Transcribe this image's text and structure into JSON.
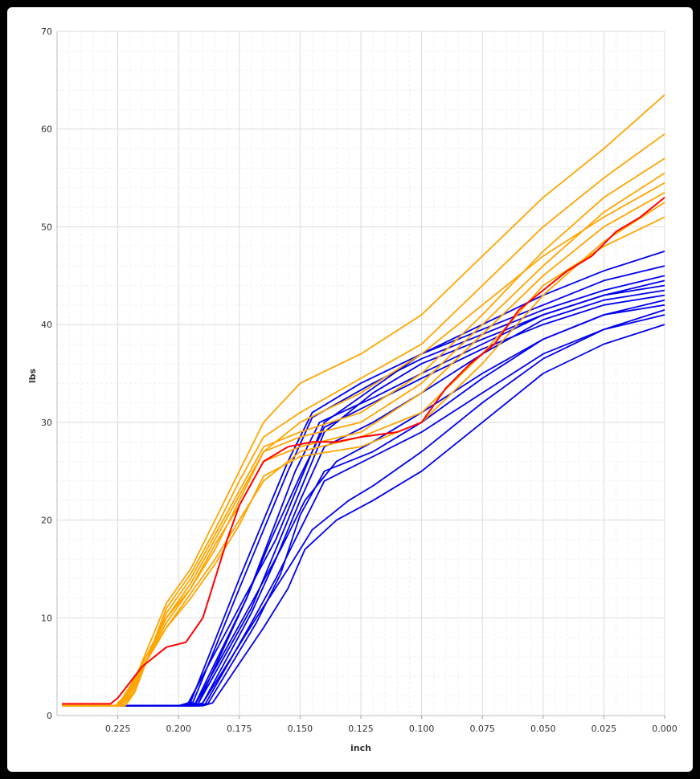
{
  "chart_data": {
    "type": "line",
    "title": "",
    "xlabel": "inch",
    "ylabel": "lbs",
    "xlim": [
      0.25,
      0.0
    ],
    "ylim": [
      0,
      70
    ],
    "x_reversed": true,
    "x_ticks": [
      "0.225",
      "0.200",
      "0.175",
      "0.150",
      "0.125",
      "0.100",
      "0.075",
      "0.050",
      "0.025",
      "0.000"
    ],
    "y_ticks": [
      "0",
      "10",
      "20",
      "30",
      "40",
      "50",
      "60",
      "70"
    ],
    "grid": true,
    "legend": "none",
    "colors": {
      "group_a": "#0000ee",
      "group_b": "#ffa500",
      "highlight": "#ff0000"
    },
    "series": [
      {
        "group": "group_a",
        "x": [
          0.248,
          0.195,
          0.192,
          0.17,
          0.16,
          0.15,
          0.14,
          0.12,
          0.1,
          0.075,
          0.05,
          0.025,
          0.0
        ],
        "y": [
          1.0,
          1.0,
          1.2,
          11.0,
          17.0,
          23.0,
          29.0,
          33.0,
          36.0,
          38.5,
          41.0,
          43.0,
          44.0
        ]
      },
      {
        "group": "group_a",
        "x": [
          0.248,
          0.2,
          0.196,
          0.172,
          0.16,
          0.15,
          0.14,
          0.12,
          0.1,
          0.075,
          0.05,
          0.025,
          0.0
        ],
        "y": [
          1.0,
          1.0,
          1.3,
          12.5,
          18.0,
          24.0,
          30.0,
          33.5,
          37.0,
          40.0,
          43.0,
          45.5,
          47.5
        ]
      },
      {
        "group": "group_a",
        "x": [
          0.248,
          0.192,
          0.189,
          0.17,
          0.16,
          0.15,
          0.14,
          0.12,
          0.1,
          0.075,
          0.05,
          0.025,
          0.0
        ],
        "y": [
          1.0,
          1.0,
          1.2,
          9.5,
          14.0,
          19.0,
          24.0,
          26.5,
          29.0,
          33.0,
          37.0,
          39.5,
          41.0
        ]
      },
      {
        "group": "group_a",
        "x": [
          0.248,
          0.198,
          0.194,
          0.175,
          0.165,
          0.155,
          0.145,
          0.12,
          0.1,
          0.075,
          0.05,
          0.025,
          0.0
        ],
        "y": [
          1.0,
          1.0,
          1.4,
          13.0,
          19.0,
          25.0,
          30.5,
          34.0,
          36.5,
          39.0,
          41.5,
          43.5,
          45.0
        ]
      },
      {
        "group": "group_a",
        "x": [
          0.248,
          0.19,
          0.186,
          0.165,
          0.155,
          0.148,
          0.135,
          0.12,
          0.1,
          0.075,
          0.05,
          0.025,
          0.0
        ],
        "y": [
          1.0,
          1.0,
          1.3,
          9.0,
          13.0,
          17.0,
          20.0,
          22.0,
          25.0,
          30.0,
          35.0,
          38.0,
          40.0
        ]
      },
      {
        "group": "group_a",
        "x": [
          0.248,
          0.196,
          0.193,
          0.17,
          0.158,
          0.148,
          0.135,
          0.12,
          0.1,
          0.075,
          0.05,
          0.025,
          0.0
        ],
        "y": [
          1.0,
          1.0,
          1.2,
          11.5,
          17.0,
          22.0,
          26.0,
          28.0,
          31.0,
          35.0,
          38.5,
          41.0,
          42.5
        ]
      },
      {
        "group": "group_a",
        "x": [
          0.248,
          0.194,
          0.19,
          0.17,
          0.16,
          0.15,
          0.14,
          0.12,
          0.1,
          0.075,
          0.05,
          0.025,
          0.0
        ],
        "y": [
          1.0,
          1.0,
          1.3,
          10.5,
          16.0,
          22.0,
          27.5,
          30.0,
          33.0,
          37.0,
          40.5,
          42.5,
          43.5
        ]
      },
      {
        "group": "group_a",
        "x": [
          0.248,
          0.199,
          0.195,
          0.175,
          0.165,
          0.155,
          0.145,
          0.125,
          0.1,
          0.075,
          0.05,
          0.025,
          0.0
        ],
        "y": [
          1.0,
          1.0,
          1.4,
          14.0,
          20.0,
          26.0,
          31.0,
          34.0,
          37.0,
          39.5,
          42.0,
          44.5,
          46.0
        ]
      },
      {
        "group": "group_a",
        "x": [
          0.248,
          0.191,
          0.188,
          0.168,
          0.158,
          0.15,
          0.14,
          0.12,
          0.1,
          0.075,
          0.05,
          0.025,
          0.0
        ],
        "y": [
          1.0,
          1.0,
          1.2,
          9.5,
          14.5,
          20.5,
          25.0,
          27.0,
          30.0,
          34.5,
          38.5,
          41.0,
          42.0
        ]
      },
      {
        "group": "group_a",
        "x": [
          0.248,
          0.197,
          0.193,
          0.172,
          0.162,
          0.152,
          0.142,
          0.12,
          0.1,
          0.075,
          0.05,
          0.025,
          0.0
        ],
        "y": [
          1.0,
          1.0,
          1.3,
          12.0,
          18.5,
          25.0,
          30.0,
          32.5,
          35.0,
          38.0,
          41.0,
          43.0,
          44.5
        ]
      },
      {
        "group": "group_a",
        "x": [
          0.248,
          0.193,
          0.19,
          0.168,
          0.155,
          0.145,
          0.13,
          0.12,
          0.1,
          0.075,
          0.05,
          0.025,
          0.0
        ],
        "y": [
          1.0,
          1.0,
          1.3,
          10.0,
          15.0,
          19.0,
          22.0,
          23.5,
          27.0,
          32.0,
          36.5,
          39.5,
          41.5
        ]
      },
      {
        "group": "group_a",
        "x": [
          0.248,
          0.195,
          0.192,
          0.172,
          0.162,
          0.15,
          0.14,
          0.12,
          0.1,
          0.075,
          0.05,
          0.025,
          0.0
        ],
        "y": [
          1.0,
          1.0,
          1.2,
          12.0,
          18.0,
          24.5,
          29.5,
          32.0,
          34.5,
          37.5,
          40.0,
          42.0,
          43.0
        ]
      }
    ],
    "series_b": [
      {
        "group": "group_b",
        "x": [
          0.248,
          0.225,
          0.222,
          0.205,
          0.195,
          0.185,
          0.175,
          0.165,
          0.15,
          0.125,
          0.1,
          0.075,
          0.05,
          0.025,
          0.0
        ],
        "y": [
          1.0,
          1.0,
          2.0,
          10.0,
          13.0,
          17.0,
          22.0,
          27.0,
          30.0,
          33.0,
          37.0,
          42.0,
          47.0,
          51.0,
          54.5
        ]
      },
      {
        "group": "group_b",
        "x": [
          0.248,
          0.224,
          0.22,
          0.205,
          0.195,
          0.185,
          0.175,
          0.165,
          0.15,
          0.125,
          0.1,
          0.075,
          0.05,
          0.025,
          0.0
        ],
        "y": [
          1.0,
          1.0,
          2.5,
          11.5,
          15.0,
          20.0,
          25.0,
          30.0,
          34.0,
          37.0,
          41.0,
          47.0,
          53.0,
          58.0,
          63.5
        ]
      },
      {
        "group": "group_b",
        "x": [
          0.248,
          0.226,
          0.223,
          0.205,
          0.195,
          0.185,
          0.175,
          0.165,
          0.15,
          0.125,
          0.1,
          0.075,
          0.05,
          0.025,
          0.0
        ],
        "y": [
          1.0,
          1.0,
          1.8,
          9.0,
          12.5,
          16.0,
          20.0,
          24.0,
          27.0,
          28.5,
          31.0,
          37.0,
          44.0,
          48.0,
          51.0
        ]
      },
      {
        "group": "group_b",
        "x": [
          0.248,
          0.223,
          0.219,
          0.205,
          0.195,
          0.185,
          0.175,
          0.165,
          0.15,
          0.125,
          0.1,
          0.075,
          0.05,
          0.025,
          0.0
        ],
        "y": [
          1.0,
          1.0,
          2.2,
          10.5,
          14.0,
          18.5,
          23.0,
          27.5,
          29.0,
          31.0,
          35.0,
          41.0,
          47.5,
          53.0,
          57.0
        ]
      },
      {
        "group": "group_b",
        "x": [
          0.248,
          0.225,
          0.221,
          0.205,
          0.195,
          0.185,
          0.175,
          0.165,
          0.15,
          0.125,
          0.1,
          0.075,
          0.05,
          0.025,
          0.0
        ],
        "y": [
          1.0,
          1.0,
          2.0,
          9.5,
          13.0,
          17.5,
          21.5,
          26.0,
          27.5,
          29.0,
          33.0,
          39.0,
          45.0,
          50.0,
          53.5
        ]
      },
      {
        "group": "group_b",
        "x": [
          0.248,
          0.222,
          0.218,
          0.205,
          0.195,
          0.185,
          0.175,
          0.165,
          0.15,
          0.125,
          0.1,
          0.075,
          0.05,
          0.025,
          0.0
        ],
        "y": [
          1.0,
          1.0,
          2.4,
          11.0,
          14.5,
          19.0,
          24.0,
          28.5,
          31.0,
          34.5,
          38.0,
          44.0,
          50.0,
          55.0,
          59.5
        ]
      },
      {
        "group": "group_b",
        "x": [
          0.248,
          0.226,
          0.222,
          0.205,
          0.195,
          0.185,
          0.175,
          0.165,
          0.15,
          0.125,
          0.1,
          0.075,
          0.05,
          0.025,
          0.0
        ],
        "y": [
          1.0,
          1.0,
          1.9,
          9.0,
          12.0,
          15.5,
          19.5,
          24.5,
          26.5,
          27.5,
          30.0,
          36.0,
          43.0,
          48.5,
          52.5
        ]
      },
      {
        "group": "group_b",
        "x": [
          0.248,
          0.224,
          0.22,
          0.205,
          0.195,
          0.185,
          0.175,
          0.165,
          0.15,
          0.125,
          0.1,
          0.075,
          0.05,
          0.025,
          0.0
        ],
        "y": [
          1.0,
          1.0,
          2.1,
          10.0,
          13.5,
          18.0,
          22.5,
          27.0,
          28.5,
          30.0,
          34.0,
          40.0,
          46.0,
          51.5,
          55.5
        ]
      }
    ],
    "highlight": {
      "group": "highlight",
      "x": [
        0.248,
        0.228,
        0.225,
        0.215,
        0.205,
        0.197,
        0.19,
        0.185,
        0.18,
        0.175,
        0.165,
        0.155,
        0.145,
        0.135,
        0.125,
        0.11,
        0.1,
        0.09,
        0.08,
        0.07,
        0.06,
        0.05,
        0.04,
        0.03,
        0.02,
        0.01,
        0.0
      ],
      "y": [
        1.2,
        1.2,
        1.8,
        5.0,
        7.0,
        7.5,
        10.0,
        14.0,
        18.0,
        21.5,
        26.0,
        27.5,
        28.0,
        28.0,
        28.5,
        29.0,
        30.0,
        33.5,
        36.0,
        38.0,
        41.5,
        43.5,
        45.5,
        47.0,
        49.5,
        51.0,
        53.0
      ]
    }
  }
}
